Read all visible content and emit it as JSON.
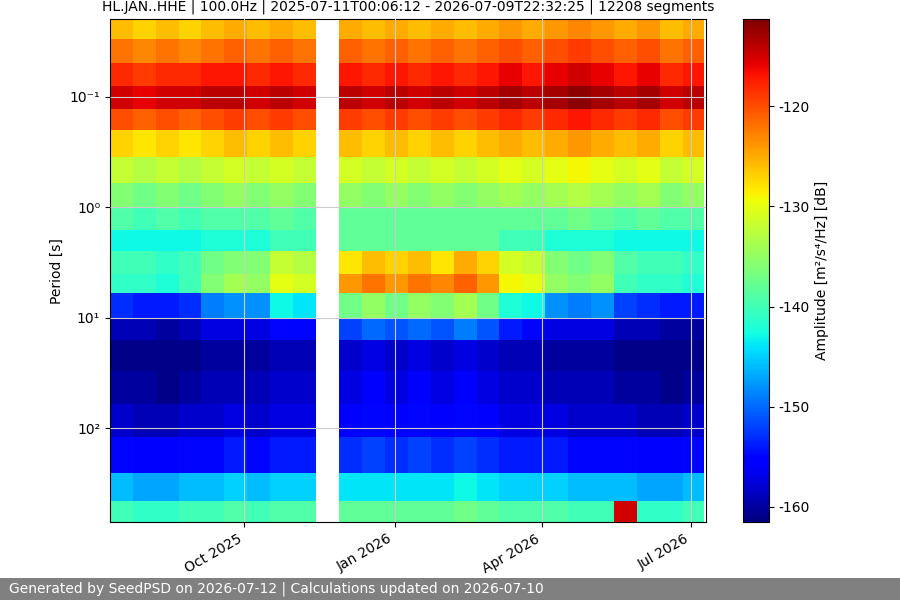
{
  "chart_data": {
    "type": "heatmap",
    "title": "HL.JAN..HHE | 100.0Hz | 2025-07-11T00:06:12 - 2026-07-09T22:32:25 | 12208 segments",
    "y_label": "Period [s]",
    "colorbar_label": "Amplitude [m²/s⁴/Hz] [dB]",
    "footer": "Generated by SeedPSD on 2026-07-12 | Calculations updated on 2026-07-10",
    "color": "jet",
    "log": "y",
    "grid": true,
    "xlim": [
      "2025-07-11T00:06:12",
      "2026-07-09T22:32:25"
    ],
    "xticks": [
      {
        "value": "2025-10-01",
        "label": "Oct 2025"
      },
      {
        "value": "2026-01-01",
        "label": "Jan 2026"
      },
      {
        "value": "2026-04-01",
        "label": "Apr 2026"
      },
      {
        "value": "2026-07-01",
        "label": "Jul 2026"
      }
    ],
    "ylim": [
      700,
      0.02
    ],
    "yticks": [
      {
        "value": 0.1,
        "label": "10⁻¹"
      },
      {
        "value": 1,
        "label": "10⁰"
      },
      {
        "value": 10,
        "label": "10¹"
      },
      {
        "value": 100,
        "label": "10²"
      }
    ],
    "colorbar_range": [
      -161.5,
      -111.3
    ],
    "colorbar_ticks": [
      -160,
      -150,
      -140,
      -130,
      -120
    ],
    "x_edges": [
      "2025-07-11",
      "2025-07-25",
      "2025-08-08",
      "2025-08-22",
      "2025-09-05",
      "2025-09-19",
      "2025-10-03",
      "2025-10-17",
      "2025-10-31",
      "2025-11-14",
      "2025-11-28",
      "2025-12-12",
      "2025-12-26",
      "2026-01-09",
      "2026-01-23",
      "2026-02-06",
      "2026-02-20",
      "2026-03-06",
      "2026-03-20",
      "2026-04-03",
      "2026-04-17",
      "2026-05-01",
      "2026-05-15",
      "2026-05-29",
      "2026-06-12",
      "2026-06-26",
      "2026-07-09"
    ],
    "y_edges": [
      0.02,
      0.03,
      0.05,
      0.08,
      0.13,
      0.2,
      0.35,
      0.6,
      1.0,
      1.6,
      2.5,
      4,
      6,
      10,
      16,
      30,
      60,
      120,
      250,
      450,
      700
    ],
    "cells": [
      [
        -126,
        -127,
        -126,
        -127,
        -126,
        -125,
        -126,
        -125,
        -126,
        null,
        -125,
        -126,
        -125,
        -126,
        -125,
        -126,
        -125,
        -124,
        -125,
        -124,
        -123,
        -124,
        -125,
        -124,
        -126,
        -125
      ],
      [
        -122,
        -123,
        -122,
        -123,
        -122,
        -121,
        -122,
        -121,
        -122,
        null,
        -121,
        -122,
        -121,
        -122,
        -121,
        -122,
        -121,
        -120,
        -121,
        -120,
        -119,
        -120,
        -121,
        -120,
        -122,
        -121
      ],
      [
        -118,
        -119,
        -118,
        -118,
        -117,
        -117,
        -118,
        -117,
        -118,
        null,
        -117,
        -118,
        -117,
        -118,
        -117,
        -118,
        -117,
        -116,
        -117,
        -116,
        -115,
        -116,
        -117,
        -116,
        -118,
        -117
      ],
      [
        -115,
        -116,
        -115,
        -115,
        -114,
        -114,
        -115,
        -114,
        -115,
        null,
        -114,
        -115,
        -114,
        -115,
        -114,
        -115,
        -114,
        -113,
        -114,
        -113,
        -112,
        -113,
        -114,
        -113,
        -115,
        -114
      ],
      [
        -120,
        -121,
        -120,
        -121,
        -120,
        -119,
        -120,
        -119,
        -120,
        null,
        -119,
        -120,
        -119,
        -120,
        -119,
        -120,
        -119,
        -118,
        -119,
        -118,
        -117,
        -118,
        -119,
        -118,
        -120,
        -119
      ],
      [
        -127,
        -128,
        -127,
        -128,
        -127,
        -126,
        -127,
        -126,
        -127,
        null,
        -126,
        -127,
        -126,
        -127,
        -126,
        -127,
        -126,
        -125,
        -126,
        -125,
        -124,
        -125,
        -126,
        -125,
        -127,
        -126
      ],
      [
        -132,
        -133,
        -132,
        -133,
        -132,
        -131,
        -132,
        -131,
        -132,
        null,
        -131,
        -132,
        -131,
        -132,
        -131,
        -132,
        -131,
        -130,
        -131,
        -130,
        -129,
        -130,
        -131,
        -130,
        -132,
        -131
      ],
      [
        -136,
        -137,
        -136,
        -137,
        -136,
        -135,
        -136,
        -135,
        -136,
        null,
        -135,
        -136,
        -135,
        -136,
        -135,
        -136,
        -135,
        -134,
        -135,
        -134,
        -133,
        -134,
        -135,
        -134,
        -136,
        -135
      ],
      [
        -139,
        -140,
        -139,
        -140,
        -139,
        -139,
        -139,
        -138,
        -139,
        null,
        -138,
        -138,
        -138,
        -138,
        -138,
        -138,
        -138,
        -138,
        -138,
        -138,
        -137,
        -138,
        -139,
        -138,
        -139,
        -139
      ],
      [
        -143,
        -143,
        -143,
        -143,
        -142,
        -142,
        -142,
        -140,
        -140,
        null,
        -138,
        -138,
        -138,
        -138,
        -138,
        -138,
        -138,
        -140,
        -140,
        -142,
        -142,
        -142,
        -143,
        -143,
        -143,
        -143
      ],
      [
        -140,
        -140,
        -141,
        -140,
        -137,
        -136,
        -136,
        -132,
        -133,
        null,
        -128,
        -126,
        -127,
        -126,
        -128,
        -125,
        -127,
        -131,
        -132,
        -136,
        -137,
        -136,
        -139,
        -140,
        -140,
        -141
      ],
      [
        -141,
        -141,
        -142,
        -140,
        -136,
        -134,
        -135,
        -130,
        -131,
        null,
        -124,
        -122,
        -124,
        -122,
        -123,
        -121,
        -124,
        -129,
        -130,
        -135,
        -136,
        -135,
        -140,
        -141,
        -141,
        -142
      ],
      [
        -153,
        -154,
        -154,
        -153,
        -149,
        -148,
        -148,
        -143,
        -144,
        null,
        -137,
        -135,
        -137,
        -135,
        -136,
        -134,
        -137,
        -142,
        -143,
        -148,
        -149,
        -148,
        -152,
        -153,
        -154,
        -154
      ],
      [
        -159,
        -159,
        -160,
        -159,
        -157,
        -157,
        -157,
        -155,
        -155,
        null,
        -152,
        -150,
        -151,
        -150,
        -151,
        -149,
        -151,
        -154,
        -155,
        -157,
        -157,
        -157,
        -159,
        -159,
        -160,
        -160
      ],
      [
        -161,
        -161,
        -161,
        -161,
        -160,
        -160,
        -160,
        -159,
        -159,
        null,
        -158,
        -157,
        -158,
        -157,
        -158,
        -157,
        -158,
        -159,
        -159,
        -160,
        -160,
        -160,
        -161,
        -161,
        -161,
        -161
      ],
      [
        -160,
        -160,
        -161,
        -160,
        -159,
        -159,
        -159,
        -158,
        -158,
        null,
        -157,
        -156,
        -157,
        -156,
        -157,
        -156,
        -157,
        -158,
        -158,
        -159,
        -159,
        -159,
        -160,
        -160,
        -161,
        -160
      ],
      [
        -158,
        -159,
        -159,
        -158,
        -158,
        -157,
        -158,
        -157,
        -157,
        null,
        -156,
        -155,
        -156,
        -155,
        -156,
        -155,
        -156,
        -157,
        -157,
        -157,
        -158,
        -158,
        -158,
        -159,
        -159,
        -158
      ],
      [
        -155,
        -156,
        -156,
        -155,
        -155,
        -154,
        -155,
        -154,
        -154,
        null,
        -153,
        -152,
        -153,
        -152,
        -153,
        -152,
        -153,
        -154,
        -154,
        -154,
        -155,
        -155,
        -155,
        -156,
        -156,
        -155
      ],
      [
        -146,
        -147,
        -147,
        -146,
        -146,
        -145,
        -146,
        -145,
        -145,
        null,
        -144,
        -144,
        -144,
        -144,
        -144,
        -143,
        -144,
        -145,
        -145,
        -145,
        -146,
        -146,
        -146,
        -147,
        -147,
        -146
      ],
      [
        -140,
        -141,
        -141,
        -140,
        -140,
        -139,
        -140,
        -139,
        -139,
        null,
        -138,
        -138,
        -138,
        -138,
        -138,
        -137,
        -138,
        -139,
        -139,
        -139,
        -140,
        -140,
        -115,
        -141,
        -141,
        -140
      ]
    ]
  }
}
